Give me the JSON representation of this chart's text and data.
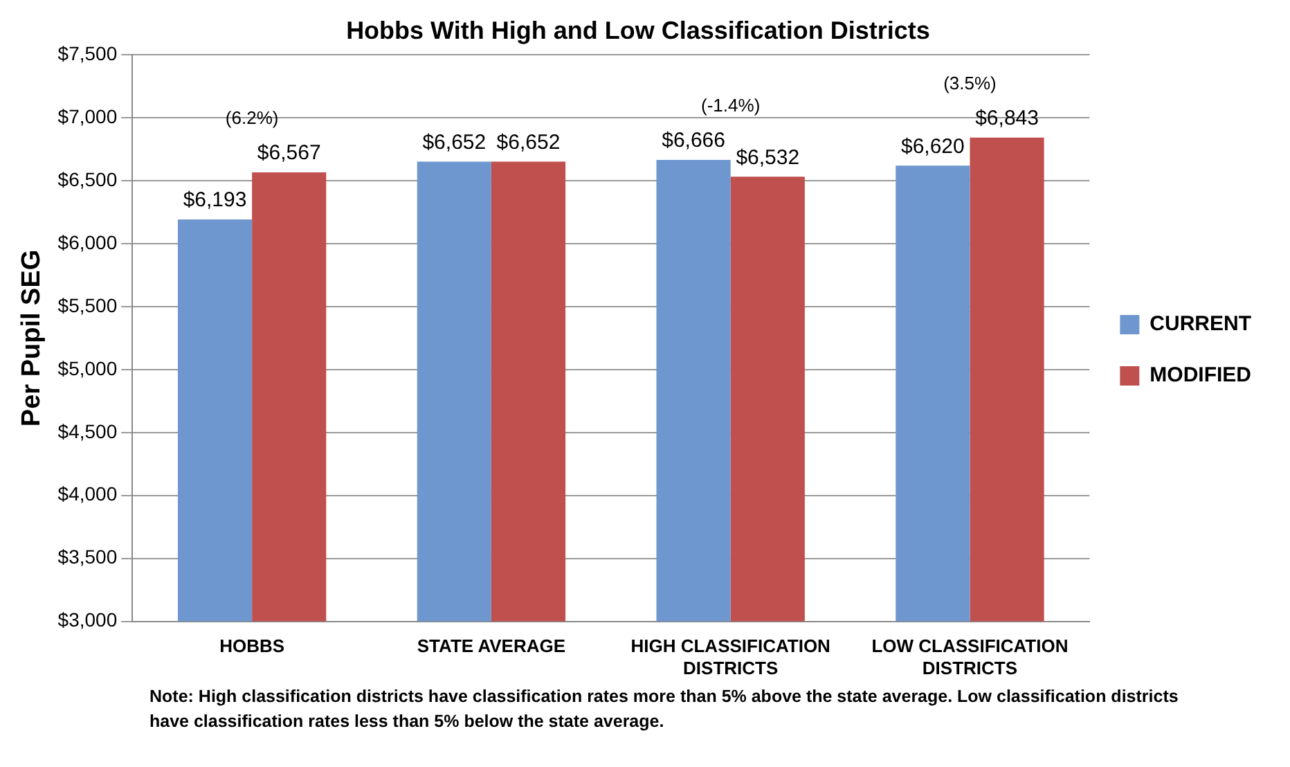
{
  "chart_data": {
    "type": "bar",
    "title": "Hobbs With High and Low Classification Districts",
    "ylabel": "Per Pupil SEG",
    "categories": [
      "HOBBS",
      "STATE AVERAGE",
      "HIGH CLASSIFICATION DISTRICTS",
      "LOW CLASSIFICATION DISTRICTS"
    ],
    "series": [
      {
        "name": "CURRENT",
        "color": "#6f97cf",
        "values": [
          6193,
          6652,
          6666,
          6620
        ],
        "value_labels": [
          "$6,193",
          "$6,652",
          "$6,666",
          "$6,620"
        ]
      },
      {
        "name": "MODIFIED",
        "color": "#c0504d",
        "values": [
          6567,
          6652,
          6532,
          6843
        ],
        "value_labels": [
          "$6,567",
          "$6,652",
          "$6,532",
          "$6,843"
        ]
      }
    ],
    "ylim": [
      3000,
      7500
    ],
    "yticks": [
      {
        "value": 3000,
        "label": "$3,000"
      },
      {
        "value": 3500,
        "label": "$3,500"
      },
      {
        "value": 4000,
        "label": "$4,000"
      },
      {
        "value": 4500,
        "label": "$4,500"
      },
      {
        "value": 5000,
        "label": "$5,000"
      },
      {
        "value": 5500,
        "label": "$5,500"
      },
      {
        "value": 6000,
        "label": "$6,000"
      },
      {
        "value": 6500,
        "label": "$6,500"
      },
      {
        "value": 7000,
        "label": "$7,000"
      },
      {
        "value": 7500,
        "label": "$7,500"
      }
    ],
    "grid": "y",
    "legend": "right",
    "annotations": [
      "(6.2%)",
      "(-1.4%)",
      "(3.5%)",
      "Note:  High classification districts have classification rates more than 5% above the state average.  Low classification districts have classification rates less than 5% below the state  average."
    ]
  }
}
